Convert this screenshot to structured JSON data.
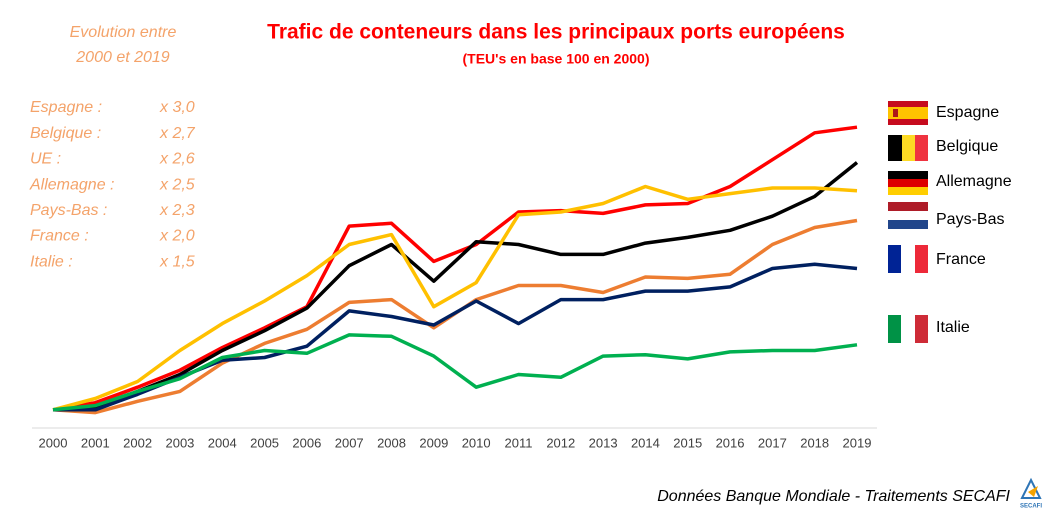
{
  "chart_data": {
    "type": "line",
    "title": "Trafic de conteneurs dans les principaux ports européens",
    "subtitle": "(TEU's en base 100 en 2000)",
    "note_title": [
      "Evolution entre",
      "2000 et 2019"
    ],
    "note_rows": [
      [
        "Espagne :",
        "x 3,0"
      ],
      [
        "Belgique :",
        "x 2,7"
      ],
      [
        "UE :",
        "x 2,6"
      ],
      [
        "Allemagne :",
        "x 2,5"
      ],
      [
        "Pays-Bas :",
        "x 2,3"
      ],
      [
        "France :",
        "x 2,0"
      ],
      [
        "Italie :",
        "x 1,5"
      ]
    ],
    "source": "Données Banque Mondiale - Traitements SECAFI",
    "logo": "SECAFI",
    "categories": [
      "2000",
      "2001",
      "2002",
      "2003",
      "2004",
      "2005",
      "2006",
      "2007",
      "2008",
      "2009",
      "2010",
      "2011",
      "2012",
      "2013",
      "2014",
      "2015",
      "2016",
      "2017",
      "2018",
      "2019"
    ],
    "ylim": [
      85,
      315
    ],
    "series": [
      {
        "name": "Espagne",
        "color": "#ff0000",
        "values": [
          100,
          105,
          116,
          128,
          144,
          158,
          173,
          230,
          232,
          205,
          217,
          240,
          241,
          239,
          245,
          246,
          258,
          277,
          296,
          300
        ]
      },
      {
        "name": "Belgique",
        "color": "#000000",
        "values": [
          100,
          101,
          113,
          125,
          142,
          156,
          172,
          202,
          217,
          191,
          219,
          217,
          210,
          210,
          218,
          222,
          227,
          237,
          251,
          275
        ]
      },
      {
        "name": "Allemagne",
        "color": "#ffc000",
        "values": [
          100,
          108,
          120,
          142,
          161,
          177,
          195,
          217,
          224,
          173,
          190,
          238,
          240,
          246,
          258,
          249,
          253,
          257,
          257,
          255
        ]
      },
      {
        "name": "Pays-Bas",
        "color": "#ed7d31",
        "values": [
          100,
          98,
          106,
          113,
          133,
          147,
          157,
          176,
          178,
          158,
          178,
          188,
          188,
          183,
          194,
          193,
          196,
          217,
          229,
          234
        ]
      },
      {
        "name": "France",
        "color": "#002060",
        "values": [
          100,
          100,
          111,
          123,
          135,
          137,
          145,
          170,
          166,
          160,
          177,
          161,
          178,
          178,
          184,
          184,
          187,
          200,
          203,
          200
        ]
      },
      {
        "name": "Italie",
        "color": "#00b050",
        "values": [
          100,
          103,
          113,
          122,
          137,
          142,
          140,
          153,
          152,
          138,
          116,
          125,
          123,
          138,
          139,
          136,
          141,
          142,
          142,
          146
        ]
      }
    ]
  }
}
